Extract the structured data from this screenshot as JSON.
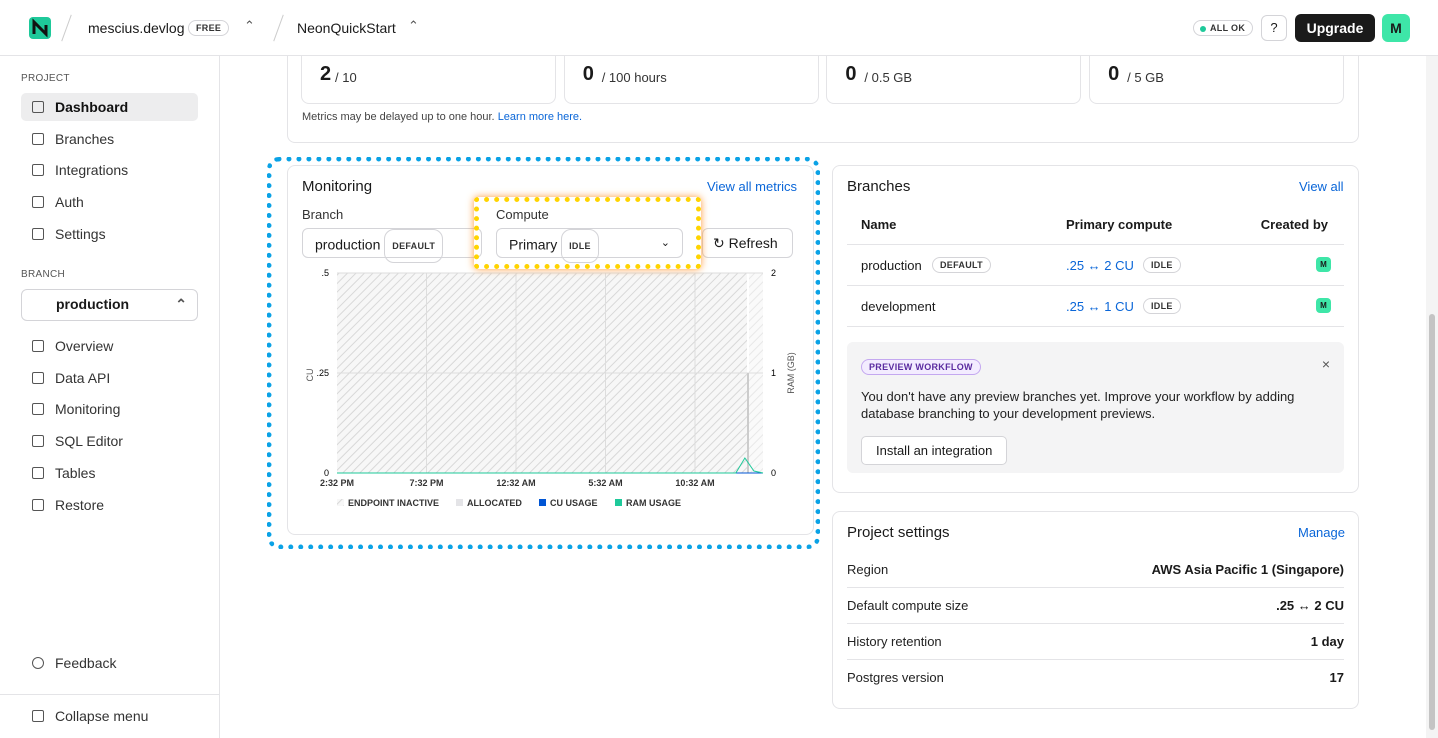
{
  "topbar": {
    "org": "mescius.devlog",
    "plan": "FREE",
    "project": "NeonQuickStart",
    "status": "ALL OK",
    "upgrade": "Upgrade",
    "avatar": "M"
  },
  "sidebar": {
    "project_heading": "PROJECT",
    "project_items": [
      "Dashboard",
      "Branches",
      "Integrations",
      "Auth",
      "Settings"
    ],
    "branch_heading": "BRANCH",
    "branch": "production",
    "branch_items": [
      "Overview",
      "Data API",
      "Monitoring",
      "SQL Editor",
      "Tables",
      "Restore"
    ],
    "feedback": "Feedback",
    "collapse": "Collapse menu"
  },
  "usage": {
    "cards": [
      {
        "value": 2,
        "limit": "/ 10"
      },
      {
        "value": 0,
        "limit": "/ 100 hours"
      },
      {
        "value": 0,
        "limit": "/ 0.5 GB"
      },
      {
        "value": 0,
        "limit": "/ 5 GB"
      }
    ],
    "note": "Metrics may be delayed up to one hour.",
    "link": "Learn more here."
  },
  "monitoring": {
    "title": "Monitoring",
    "view_all": "View all metrics",
    "branch_label": "Branch",
    "branch_value": "production",
    "branch_badge": "DEFAULT",
    "compute_label": "Compute",
    "compute_value": "Primary",
    "compute_badge": "IDLE",
    "refresh": "Refresh",
    "chart": {
      "ylabel": "CU",
      "y2label": "RAM (GB)",
      "ylim": [
        0,
        0.5
      ],
      "yticks": [
        0,
        {
          "value": 0.25,
          "label": ".25"
        },
        {
          "value": 0.5,
          "label": ".5"
        }
      ],
      "y2lim": [
        0,
        2
      ],
      "y2ticks": [
        0,
        1,
        2
      ],
      "xticks": [
        "2:32 PM",
        "7:32 PM",
        "12:32 AM",
        "5:32 AM",
        "10:32 AM"
      ],
      "legend": [
        {
          "name": "ENDPOINT INACTIVE",
          "color": "#d4d4d8"
        },
        {
          "name": "ALLOCATED",
          "color": "#e4e4e7"
        }
      ],
      "series": [
        {
          "name": "CU USAGE",
          "color": "#0055d4",
          "values": [
            0,
            0,
            0,
            0,
            0,
            0,
            0,
            0,
            0,
            0,
            0,
            0,
            0,
            0,
            0,
            0,
            0,
            0,
            0,
            0,
            0,
            0,
            0,
            0,
            0,
            0,
            0,
            0,
            0,
            0,
            0,
            0,
            0,
            0,
            0,
            0,
            0,
            0,
            0,
            0,
            0,
            0,
            0,
            0,
            0,
            0,
            0,
            0
          ]
        },
        {
          "name": "RAM USAGE",
          "color": "#1ec99a",
          "axis": "y2",
          "values": [
            0,
            0,
            0,
            0,
            0,
            0,
            0,
            0,
            0,
            0,
            0,
            0,
            0,
            0,
            0,
            0,
            0,
            0,
            0,
            0,
            0,
            0,
            0,
            0,
            0,
            0,
            0,
            0,
            0,
            0,
            0,
            0,
            0,
            0,
            0,
            0,
            0,
            0,
            0,
            0,
            0,
            0,
            0,
            0,
            0,
            0.15,
            0.02,
            0
          ]
        }
      ]
    }
  },
  "branches": {
    "title": "Branches",
    "view_all": "View all",
    "headers": [
      "Name",
      "Primary compute",
      "Created by"
    ],
    "rows": [
      {
        "name": "production",
        "badge": "DEFAULT",
        "compute": ".25 ↔ 2 CU",
        "state": "IDLE",
        "creator": "M"
      },
      {
        "name": "development",
        "compute": ".25 ↔ 1 CU",
        "state": "IDLE",
        "creator": "M"
      }
    ],
    "preview": {
      "badge": "PREVIEW WORKFLOW",
      "text": "You don't have any preview branches yet. Improve your workflow by adding database branching to your development previews.",
      "button": "Install an integration"
    }
  },
  "settings": {
    "title": "Project settings",
    "manage": "Manage",
    "rows": [
      [
        "Region",
        "AWS Asia Pacific 1 (Singapore)"
      ],
      [
        "Default compute size",
        ".25 ↔ 2 CU"
      ],
      [
        "History retention",
        "1 day"
      ],
      [
        "Postgres version",
        "17"
      ]
    ]
  }
}
